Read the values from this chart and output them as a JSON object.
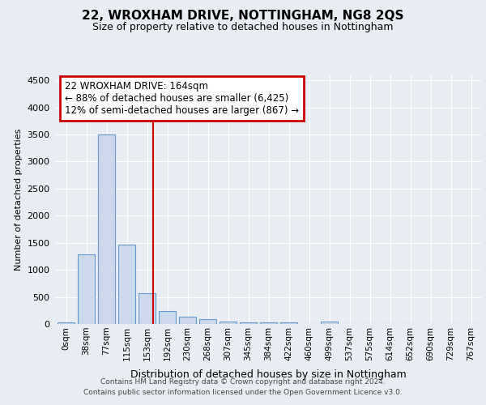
{
  "title": "22, WROXHAM DRIVE, NOTTINGHAM, NG8 2QS",
  "subtitle": "Size of property relative to detached houses in Nottingham",
  "xlabel": "Distribution of detached houses by size in Nottingham",
  "ylabel": "Number of detached properties",
  "bin_labels": [
    "0sqm",
    "38sqm",
    "77sqm",
    "115sqm",
    "153sqm",
    "192sqm",
    "230sqm",
    "268sqm",
    "307sqm",
    "345sqm",
    "384sqm",
    "422sqm",
    "460sqm",
    "499sqm",
    "537sqm",
    "575sqm",
    "614sqm",
    "652sqm",
    "690sqm",
    "729sqm",
    "767sqm"
  ],
  "bar_heights": [
    30,
    1280,
    3500,
    1470,
    570,
    240,
    130,
    90,
    50,
    30,
    30,
    30,
    0,
    50,
    0,
    0,
    0,
    0,
    0,
    0,
    0
  ],
  "bar_color": "#ccd9ea",
  "bar_edge_color": "#6699cc",
  "ylim": [
    0,
    4600
  ],
  "yticks": [
    0,
    500,
    1000,
    1500,
    2000,
    2500,
    3000,
    3500,
    4000,
    4500
  ],
  "annotation_line1": "22 WROXHAM DRIVE: 164sqm",
  "annotation_line2": "← 88% of detached houses are smaller (6,425)",
  "annotation_line3": "12% of semi-detached houses are larger (867) →",
  "annotation_box_color": "#ffffff",
  "annotation_box_edge": "#cc0000",
  "red_line_color": "#cc0000",
  "footer1": "Contains HM Land Registry data © Crown copyright and database right 2024.",
  "footer2": "Contains public sector information licensed under the Open Government Licence v3.0.",
  "fig_bg_color": "#e8edf4",
  "plot_bg_color": "#e8edf4",
  "grid_color": "#ffffff",
  "title_fontsize": 11,
  "subtitle_fontsize": 9,
  "ylabel_fontsize": 8,
  "xlabel_fontsize": 9,
  "tick_fontsize": 8,
  "xtick_fontsize": 7.5,
  "footer_fontsize": 6.5,
  "annot_fontsize": 8.5
}
